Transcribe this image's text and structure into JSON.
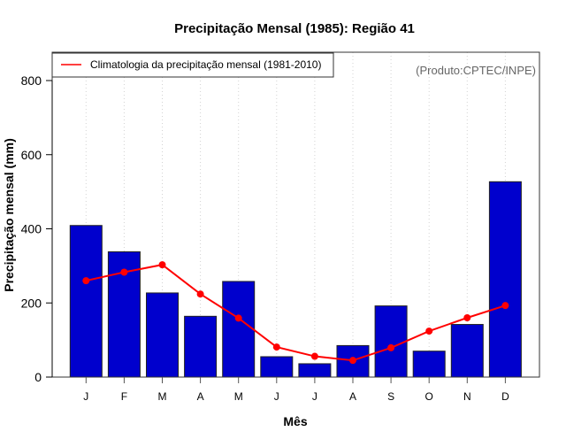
{
  "chart_data": {
    "type": "bar",
    "title": "Precipitação Mensal (1985): Região 41",
    "xlabel": "Mês",
    "ylabel": "Precipitação mensal (mm)",
    "ylim": [
      0,
      880
    ],
    "yticks": [
      0,
      200,
      400,
      600,
      800
    ],
    "categories": [
      "J",
      "F",
      "M",
      "A",
      "M",
      "J",
      "J",
      "A",
      "S",
      "O",
      "N",
      "D"
    ],
    "grid": "vertical dotted",
    "series": [
      {
        "name": "Precipitação mensal (1985)",
        "type": "bar",
        "color": "#0000CD",
        "values": [
          409,
          338,
          227,
          164,
          258,
          55,
          36,
          85,
          192,
          70,
          142,
          527
        ]
      },
      {
        "name": "Climatologia da precipitação mensal (1981-2010)",
        "type": "line",
        "color": "#FF0000",
        "values": [
          260,
          283,
          303,
          224,
          159,
          81,
          56,
          45,
          79,
          124,
          160,
          193
        ]
      }
    ],
    "legend": {
      "placement": "top-left",
      "entries": [
        "Climatologia da precipitação mensal (1981-2010)"
      ]
    },
    "annotation": "(Produto:CPTEC/INPE)"
  }
}
